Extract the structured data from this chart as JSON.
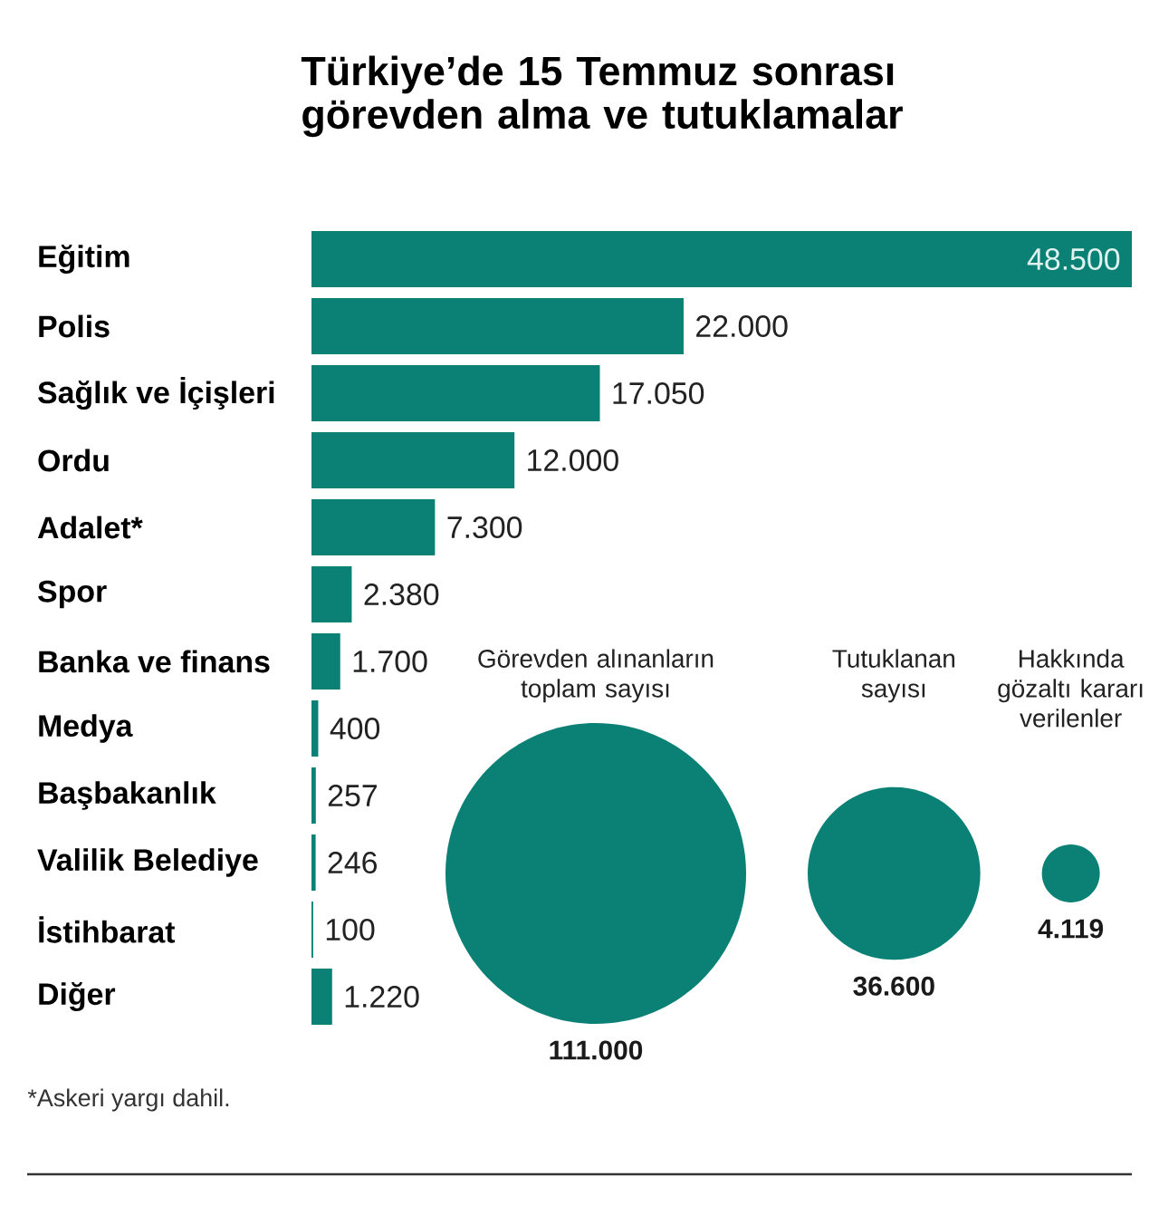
{
  "chart_data": [
    {
      "type": "bar",
      "orientation": "horizontal",
      "title": "Türkiye’de 15 Temmuz sonrası görevden alma ve tutuklamalar",
      "categories": [
        "Eğitim",
        "Polis",
        "Sağlık ve İçişleri",
        "Ordu",
        "Adalet*",
        "Spor",
        "Banka ve finans",
        "Medya",
        "Başbakanlık",
        "Valilik Belediye",
        "İstihbarat",
        "Diğer"
      ],
      "values": [
        48500,
        22000,
        17050,
        12000,
        7300,
        2380,
        1700,
        400,
        257,
        246,
        100,
        1220
      ],
      "value_labels": [
        "48.500",
        "22.000",
        "17.050",
        "12.000",
        "7.300",
        "2.380",
        "1.700",
        "400",
        "257",
        "246",
        "100",
        "1.220"
      ],
      "color": "#0b8075",
      "annotations": [
        "*Askeri yargı dahil."
      ]
    },
    {
      "type": "other",
      "categories": [
        "Görevden alınanların toplam sayısı",
        "Tutuklanan sayısı",
        "Hakkında gözaltı kararı verilenler"
      ],
      "values": [
        111000,
        36600,
        4119
      ],
      "value_labels": [
        "111.000",
        "36.600",
        "4.119"
      ],
      "color": "#0b8075"
    }
  ]
}
